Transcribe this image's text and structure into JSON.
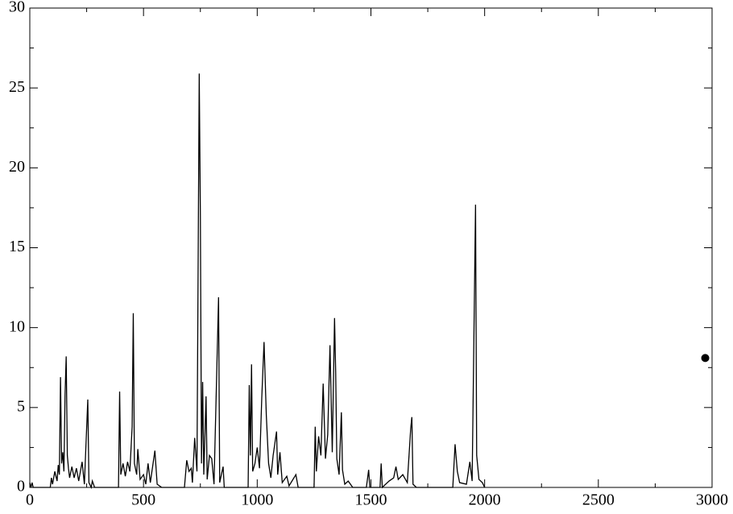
{
  "chart_data": {
    "type": "line",
    "xlim": [
      0,
      3000
    ],
    "ylim": [
      0,
      30
    ],
    "xticks": [
      0,
      500,
      1000,
      1500,
      2000,
      2500,
      3000
    ],
    "yticks": [
      0,
      5,
      10,
      15,
      20,
      25,
      30
    ],
    "xminorticks": [
      250,
      750,
      1250,
      1750,
      2250,
      2750
    ],
    "yminorticks": [
      2.5,
      7.5,
      12.5,
      17.5,
      22.5,
      27.5
    ],
    "series": [
      {
        "type": "line",
        "color": "#000000",
        "x": [
          0,
          5,
          10,
          15,
          90,
          95,
          100,
          110,
          120,
          125,
          130,
          135,
          140,
          145,
          150,
          155,
          160,
          165,
          170,
          175,
          185,
          195,
          205,
          215,
          230,
          240,
          255,
          260,
          270,
          275,
          285,
          390,
          395,
          400,
          410,
          420,
          430,
          440,
          450,
          455,
          460,
          470,
          475,
          485,
          500,
          510,
          520,
          530,
          550,
          560,
          580,
          680,
          690,
          700,
          710,
          715,
          725,
          735,
          745,
          750,
          755,
          760,
          765,
          775,
          780,
          790,
          800,
          810,
          830,
          835,
          850,
          855,
          960,
          965,
          970,
          975,
          980,
          990,
          1000,
          1010,
          1020,
          1030,
          1040,
          1050,
          1060,
          1070,
          1085,
          1090,
          1100,
          1110,
          1130,
          1140,
          1170,
          1180,
          1250,
          1255,
          1260,
          1270,
          1280,
          1290,
          1300,
          1310,
          1320,
          1330,
          1340,
          1345,
          1350,
          1360,
          1370,
          1375,
          1385,
          1400,
          1420,
          1480,
          1490,
          1495,
          1540,
          1545,
          1550,
          1580,
          1600,
          1610,
          1620,
          1640,
          1660,
          1675,
          1680,
          1685,
          1700,
          1860,
          1870,
          1880,
          1890,
          1920,
          1935,
          1945,
          1960,
          1965,
          1975,
          1990,
          2000
        ],
        "values": [
          0.3,
          0,
          0.3,
          0,
          0,
          0.6,
          0.2,
          1.0,
          0.4,
          1.4,
          0.8,
          6.9,
          1.5,
          2.2,
          1.0,
          5.8,
          8.2,
          2.0,
          1.2,
          0.6,
          1.3,
          0.6,
          1.2,
          0.4,
          1.6,
          0.2,
          5.5,
          0.3,
          0,
          0.4,
          0,
          0,
          6.0,
          0.8,
          1.5,
          0.7,
          1.6,
          1.0,
          3.8,
          10.9,
          1.5,
          0.8,
          2.4,
          0.5,
          0.8,
          0.2,
          1.5,
          0.3,
          2.3,
          0.2,
          0,
          0,
          1.7,
          1.0,
          1.2,
          0.3,
          3.1,
          1.0,
          25.9,
          17.0,
          1.5,
          6.6,
          0.8,
          5.7,
          0.5,
          2.0,
          1.8,
          0.2,
          11.9,
          0.3,
          1.3,
          0,
          0,
          6.4,
          2.0,
          7.7,
          1.0,
          1.5,
          2.5,
          1.2,
          5.6,
          9.1,
          4.5,
          1.5,
          0.6,
          2.0,
          3.5,
          0.8,
          2.2,
          0.3,
          0.7,
          0.1,
          0.8,
          0,
          0,
          3.8,
          1.0,
          3.2,
          2.0,
          6.5,
          1.8,
          3.3,
          8.9,
          2.2,
          10.6,
          7.2,
          1.8,
          0.8,
          4.7,
          1.1,
          0.2,
          0.4,
          0,
          0,
          1.1,
          0,
          0,
          1.5,
          0,
          0.4,
          0.6,
          1.3,
          0.5,
          0.8,
          0.3,
          3.7,
          4.4,
          0.2,
          0,
          0,
          2.7,
          1.0,
          0.3,
          0.2,
          1.6,
          0.4,
          17.7,
          2.0,
          0.5,
          0.3,
          0
        ]
      },
      {
        "type": "scatter",
        "color": "#000000",
        "x": [
          2970
        ],
        "values": [
          8.1
        ]
      }
    ]
  }
}
